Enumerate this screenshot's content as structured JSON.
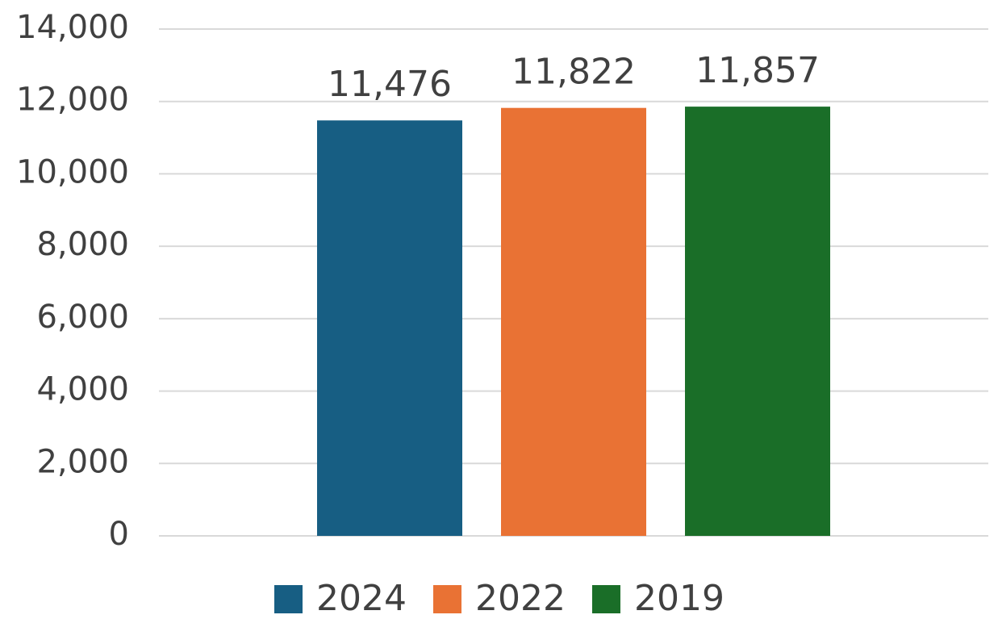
{
  "chart_data": {
    "type": "bar",
    "categories": [
      null
    ],
    "series": [
      {
        "name": "2024",
        "color": "#175e83",
        "values": [
          11476
        ],
        "value_labels": [
          "11,476"
        ]
      },
      {
        "name": "2022",
        "color": "#e97234",
        "values": [
          11822
        ],
        "value_labels": [
          "11,822"
        ]
      },
      {
        "name": "2019",
        "color": "#1a6e28",
        "values": [
          11857
        ],
        "value_labels": [
          "11,857"
        ]
      }
    ],
    "ylim": [
      0,
      14000
    ],
    "yticks": [
      0,
      {
        "value": 2000,
        "label": "2,000"
      },
      {
        "value": 4000,
        "label": "4,000"
      },
      {
        "value": 6000,
        "label": "6,000"
      },
      {
        "value": 8000,
        "label": "8,000"
      },
      {
        "value": 10000,
        "label": "10,000"
      },
      {
        "value": 12000,
        "label": "12,000"
      },
      {
        "value": 14000,
        "label": "14,000"
      }
    ],
    "grid": true,
    "legend": "bottom"
  }
}
